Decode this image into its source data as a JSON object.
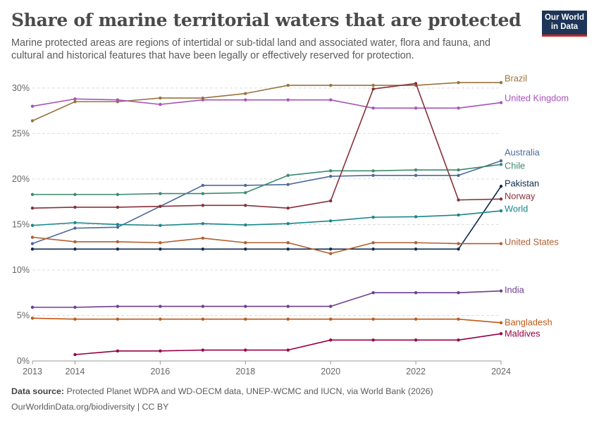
{
  "header": {
    "title": "Share of marine territorial waters that are protected",
    "subtitle": "Marine protected areas are regions of intertidal or sub-tidal land and associated water, flora and fauna, and cultural and historical features that have been legally or effectively reserved for protection."
  },
  "logo": {
    "line1": "Our World",
    "line2": "in Data"
  },
  "footer": {
    "source_label": "Data source:",
    "source_text": "Protected Planet WDPA and WD-OECM data, UNEP-WCMC and IUCN, via World Bank (2026)",
    "url_text": "OurWorldinData.org/biodiversity | CC BY"
  },
  "chart_data": {
    "type": "line",
    "x_ticks": [
      2013,
      2014,
      2016,
      2018,
      2020,
      2022,
      2024
    ],
    "y_ticks": [
      0,
      5,
      10,
      15,
      20,
      25,
      30
    ],
    "y_tick_labels": [
      "0%",
      "5%",
      "10%",
      "15%",
      "20%",
      "25%",
      "30%"
    ],
    "xlim": [
      2013,
      2024
    ],
    "ylim": [
      0,
      31
    ],
    "grid": "horizontal dashed",
    "legend": "right end labels",
    "series": [
      {
        "name": "Brazil",
        "color": "#98743c",
        "x": [
          2013,
          2014,
          2015,
          2016,
          2017,
          2018,
          2019,
          2020,
          2021,
          2022,
          2023,
          2024
        ],
        "values": [
          26.4,
          28.5,
          28.5,
          28.9,
          28.9,
          29.4,
          30.3,
          30.3,
          30.3,
          30.3,
          30.6,
          30.6
        ]
      },
      {
        "name": "United Kingdom",
        "color": "#a652ba",
        "x": [
          2013,
          2014,
          2015,
          2016,
          2017,
          2018,
          2019,
          2020,
          2021,
          2022,
          2023,
          2024
        ],
        "values": [
          28.0,
          28.8,
          28.7,
          28.2,
          28.7,
          28.7,
          28.7,
          28.7,
          27.8,
          27.8,
          27.8,
          28.4
        ]
      },
      {
        "name": "Australia",
        "color": "#4c6a9c",
        "x": [
          2013,
          2014,
          2015,
          2016,
          2017,
          2018,
          2019,
          2020,
          2021,
          2022,
          2023,
          2024
        ],
        "values": [
          12.9,
          14.6,
          14.7,
          17.0,
          19.3,
          19.3,
          19.4,
          20.3,
          20.4,
          20.4,
          20.4,
          22.0
        ]
      },
      {
        "name": "Chile",
        "color": "#3c8a6c",
        "x": [
          2013,
          2014,
          2015,
          2016,
          2017,
          2018,
          2019,
          2020,
          2021,
          2022,
          2023,
          2024
        ],
        "values": [
          18.3,
          18.3,
          18.3,
          18.4,
          18.4,
          18.5,
          20.4,
          20.9,
          20.9,
          21.0,
          21.0,
          21.6
        ]
      },
      {
        "name": "Pakistan",
        "color": "#0e2a4f",
        "x": [
          2013,
          2014,
          2015,
          2016,
          2017,
          2018,
          2019,
          2020,
          2021,
          2022,
          2023,
          2024
        ],
        "values": [
          12.3,
          12.3,
          12.3,
          12.3,
          12.3,
          12.3,
          12.3,
          12.3,
          12.3,
          12.3,
          12.3,
          19.2
        ]
      },
      {
        "name": "Norway",
        "color": "#883039",
        "x": [
          2013,
          2014,
          2015,
          2016,
          2017,
          2018,
          2019,
          2020,
          2021,
          2022,
          2023,
          2024
        ],
        "values": [
          16.8,
          16.9,
          16.9,
          17.0,
          17.1,
          17.1,
          16.8,
          17.6,
          29.9,
          30.5,
          17.7,
          17.8
        ]
      },
      {
        "name": "World",
        "color": "#18878c",
        "x": [
          2013,
          2014,
          2015,
          2016,
          2017,
          2018,
          2019,
          2020,
          2021,
          2022,
          2023,
          2024
        ],
        "values": [
          14.9,
          15.2,
          15.0,
          14.9,
          15.1,
          14.95,
          15.1,
          15.4,
          15.8,
          15.85,
          16.05,
          16.5
        ]
      },
      {
        "name": "United States",
        "color": "#b05e30",
        "x": [
          2013,
          2014,
          2015,
          2016,
          2017,
          2018,
          2019,
          2020,
          2021,
          2022,
          2023,
          2024
        ],
        "values": [
          13.6,
          13.1,
          13.1,
          13.0,
          13.5,
          13.0,
          13.0,
          11.8,
          13.0,
          13.0,
          12.9,
          12.9
        ]
      },
      {
        "name": "India",
        "color": "#6d3e91",
        "x": [
          2013,
          2014,
          2015,
          2016,
          2017,
          2018,
          2019,
          2020,
          2021,
          2022,
          2023,
          2024
        ],
        "values": [
          5.9,
          5.9,
          6.0,
          6.0,
          6.0,
          6.0,
          6.0,
          6.0,
          7.5,
          7.5,
          7.5,
          7.7
        ]
      },
      {
        "name": "Bangladesh",
        "color": "#c05917",
        "x": [
          2013,
          2014,
          2015,
          2016,
          2017,
          2018,
          2019,
          2020,
          2021,
          2022,
          2023,
          2024
        ],
        "values": [
          4.7,
          4.6,
          4.6,
          4.6,
          4.6,
          4.6,
          4.6,
          4.6,
          4.6,
          4.6,
          4.6,
          4.2
        ]
      },
      {
        "name": "Maldives",
        "color": "#970046",
        "x": [
          2014,
          2015,
          2016,
          2017,
          2018,
          2019,
          2020,
          2021,
          2022,
          2023,
          2024
        ],
        "values": [
          0.7,
          1.1,
          1.1,
          1.2,
          1.2,
          1.2,
          2.3,
          2.3,
          2.3,
          2.3,
          3.0
        ]
      }
    ]
  }
}
